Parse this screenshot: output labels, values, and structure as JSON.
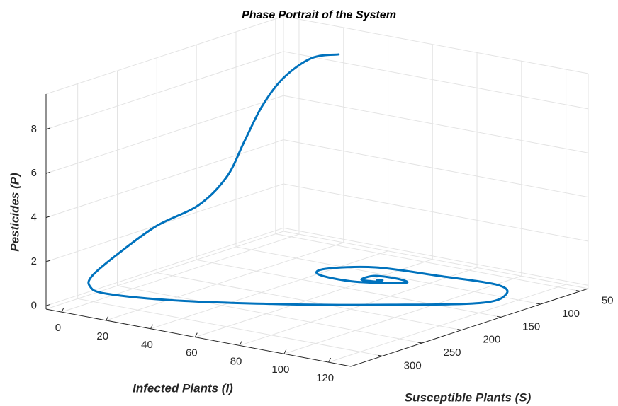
{
  "chart_data": {
    "type": "line3d",
    "title": "Phase Portrait of the System",
    "xlabel": "Infected Plants (I)",
    "ylabel": "Susceptible Plants (S)",
    "zlabel": "Pesticides (P)",
    "color": "#0072bd",
    "grid": true,
    "xlim": [
      -7,
      130
    ],
    "xticks": [
      0,
      20,
      40,
      60,
      80,
      100,
      120
    ],
    "ylim": [
      40,
      340
    ],
    "yticks": [
      50,
      100,
      150,
      200,
      250,
      300
    ],
    "zlim": [
      -0.15,
      9.6
    ],
    "zticks": [
      0,
      2,
      4,
      6,
      8
    ],
    "x": [
      24.9,
      13.5,
      2.2,
      1.2,
      2.1,
      3.1,
      4.6,
      3.2,
      3.5,
      6.6,
      9.2,
      16.5,
      41.3,
      74.8,
      101.3,
      117.8,
      118.2,
      109.9,
      88,
      70,
      60.1,
      64,
      78.2,
      91.6,
      84.7,
      73.5,
      70.7,
      76.4,
      77.4,
      75.6
    ],
    "y": [
      60,
      62,
      66,
      90,
      115,
      140,
      180,
      230,
      280,
      320,
      330,
      330,
      310,
      270,
      210,
      140,
      110,
      100,
      110,
      140,
      175,
      195,
      190,
      165,
      150,
      150,
      160,
      158,
      152,
      154
    ],
    "z": [
      8.71,
      8.35,
      7.28,
      6.27,
      4.98,
      3.69,
      2.9,
      2.5,
      1.81,
      1.38,
      1.07,
      0.88,
      0.8,
      0.8,
      0.57,
      0.15,
      0.22,
      0.36,
      0.45,
      0.85,
      1.01,
      1.06,
      0.95,
      0.85,
      0.7,
      0.65,
      0.55,
      0.54,
      0.55,
      0.54
    ]
  }
}
